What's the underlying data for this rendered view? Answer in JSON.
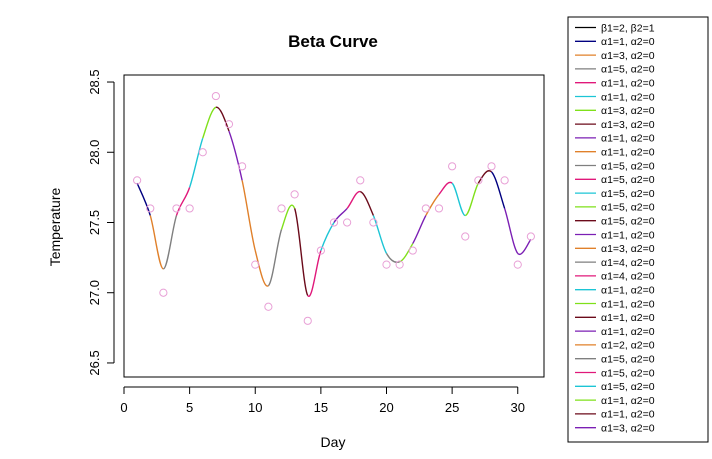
{
  "chart_data": {
    "type": "scatter",
    "title": "Beta Curve",
    "xlabel": "Day",
    "ylabel": "Temperature",
    "xlim": [
      0,
      32
    ],
    "ylim": [
      26.4,
      28.55
    ],
    "x_ticks": [
      0,
      5,
      10,
      15,
      20,
      25,
      30
    ],
    "y_ticks": [
      26.5,
      27.0,
      27.5,
      28.0,
      28.5
    ],
    "x_tick_labels": [
      "0",
      "5",
      "10",
      "15",
      "20",
      "25",
      "30"
    ],
    "y_tick_labels": [
      "26.5",
      "27.0",
      "27.5",
      "28.0",
      "28.5"
    ],
    "grid": false,
    "legend_position": "right, outside plot",
    "points": {
      "color": "#E8A0D6",
      "x": [
        1,
        2,
        3,
        4,
        5,
        6,
        7,
        8,
        9,
        10,
        11,
        12,
        13,
        14,
        15,
        16,
        17,
        18,
        19,
        20,
        21,
        22,
        23,
        24,
        25,
        26,
        27,
        28,
        29,
        30,
        31
      ],
      "y": [
        27.8,
        27.6,
        27.0,
        27.6,
        27.6,
        28.0,
        28.4,
        28.2,
        27.9,
        27.2,
        26.9,
        27.6,
        27.7,
        26.8,
        27.3,
        27.5,
        27.5,
        27.8,
        27.5,
        27.2,
        27.2,
        27.3,
        27.6,
        27.6,
        27.9,
        27.4,
        27.8,
        27.9,
        27.8,
        27.2,
        27.4
      ]
    },
    "curve": {
      "x": [
        1,
        2,
        3,
        4,
        5,
        6,
        7,
        8,
        9,
        10,
        11,
        12,
        13,
        14,
        15,
        16,
        17,
        18,
        19,
        20,
        21,
        22,
        23,
        24,
        25,
        26,
        27,
        28,
        29,
        30,
        31
      ],
      "y": [
        27.78,
        27.55,
        27.17,
        27.55,
        27.75,
        28.1,
        28.32,
        28.15,
        27.8,
        27.3,
        27.05,
        27.45,
        27.6,
        26.98,
        27.3,
        27.5,
        27.6,
        27.72,
        27.55,
        27.28,
        27.22,
        27.35,
        27.55,
        27.7,
        27.78,
        27.55,
        27.78,
        27.86,
        27.6,
        27.28,
        27.38
      ],
      "segment_colors": [
        "#000080",
        "#E0802A",
        "#7F7F7F",
        "#E0187A",
        "#1CC5D5",
        "#7FE01A",
        "#6B0A1A",
        "#7B1FB4",
        "#E0802A",
        "#E0802A",
        "#7F7F7F",
        "#7FE01A",
        "#6B0A1A",
        "#E0187A",
        "#1CC5D5",
        "#7B1FB4",
        "#E0187A",
        "#6B0A1A",
        "#1CC5D5",
        "#7F7F7F",
        "#7FE01A",
        "#7B1FB4",
        "#E0802A",
        "#E0187A",
        "#1CC5D5",
        "#7FE01A",
        "#6B0A1A",
        "#000080",
        "#7B1FB4",
        "#7B1FB4"
      ]
    },
    "series": [
      {
        "name": "β1=2, β2=1",
        "color": "#000000"
      },
      {
        "name": "α1=1, α2=0",
        "color": "#000080"
      },
      {
        "name": "α1=3, α2=0",
        "color": "#E0802A"
      },
      {
        "name": "α1=5, α2=0",
        "color": "#7F7F7F"
      },
      {
        "name": "α1=1, α2=0",
        "color": "#E0187A"
      },
      {
        "name": "α1=1, α2=0",
        "color": "#1CC5D5"
      },
      {
        "name": "α1=3, α2=0",
        "color": "#7FE01A"
      },
      {
        "name": "α1=3, α2=0",
        "color": "#6B0A1A"
      },
      {
        "name": "α1=1, α2=0",
        "color": "#7B1FB4"
      },
      {
        "name": "α1=1, α2=0",
        "color": "#E0802A"
      },
      {
        "name": "α1=5, α2=0",
        "color": "#7F7F7F"
      },
      {
        "name": "α1=5, α2=0",
        "color": "#E0187A"
      },
      {
        "name": "α1=5, α2=0",
        "color": "#1CC5D5"
      },
      {
        "name": "α1=5, α2=0",
        "color": "#7FE01A"
      },
      {
        "name": "α1=5, α2=0",
        "color": "#6B0A1A"
      },
      {
        "name": "α1=1, α2=0",
        "color": "#7B1FB4"
      },
      {
        "name": "α1=3, α2=0",
        "color": "#E0802A"
      },
      {
        "name": "α1=4, α2=0",
        "color": "#7F7F7F"
      },
      {
        "name": "α1=4, α2=0",
        "color": "#E0187A"
      },
      {
        "name": "α1=1, α2=0",
        "color": "#1CC5D5"
      },
      {
        "name": "α1=1, α2=0",
        "color": "#7FE01A"
      },
      {
        "name": "α1=1, α2=0",
        "color": "#6B0A1A"
      },
      {
        "name": "α1=1, α2=0",
        "color": "#7B1FB4"
      },
      {
        "name": "α1=2, α2=0",
        "color": "#E0802A"
      },
      {
        "name": "α1=5, α2=0",
        "color": "#7F7F7F"
      },
      {
        "name": "α1=5, α2=0",
        "color": "#E0187A"
      },
      {
        "name": "α1=5, α2=0",
        "color": "#1CC5D5"
      },
      {
        "name": "α1=1, α2=0",
        "color": "#7FE01A"
      },
      {
        "name": "α1=1, α2=0",
        "color": "#6B0A1A"
      },
      {
        "name": "α1=3, α2=0",
        "color": "#7B1FB4"
      }
    ]
  }
}
